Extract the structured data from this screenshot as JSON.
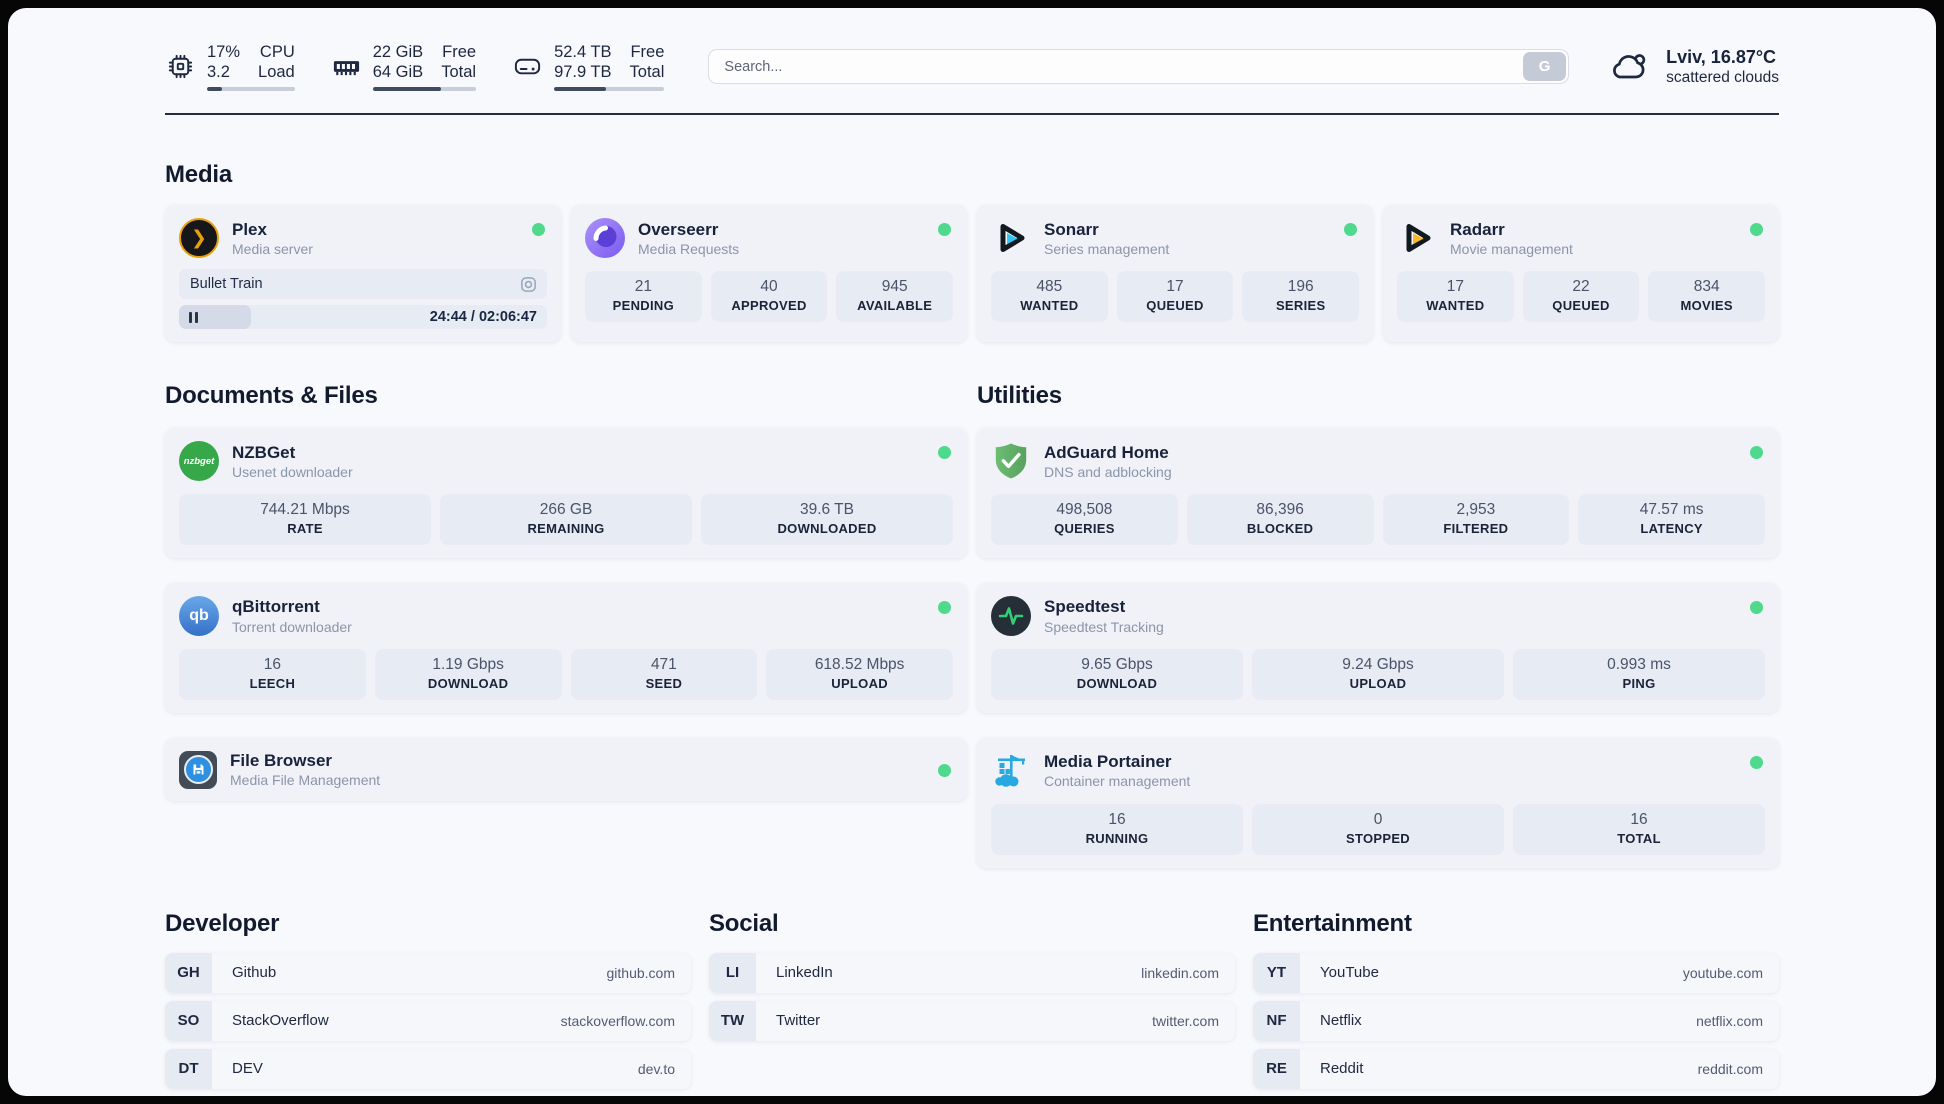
{
  "topbar": {
    "cpu": {
      "value_1": "17%",
      "value_2": "3.2",
      "label_1": "CPU",
      "label_2": "Load",
      "progress_pct": 17
    },
    "ram": {
      "value_1": "22 GiB",
      "value_2": "64 GiB",
      "label_1": "Free",
      "label_2": "Total",
      "progress_pct": 66
    },
    "disk": {
      "value_1": "52.4 TB",
      "value_2": "97.9 TB",
      "label_1": "Free",
      "label_2": "Total",
      "progress_pct": 47
    },
    "search": {
      "placeholder": "Search...",
      "button_label": "G"
    },
    "weather": {
      "location": "Lviv, 16.87°C",
      "condition": "scattered clouds"
    }
  },
  "media": {
    "heading": "Media",
    "plex": {
      "name": "Plex",
      "subtitle": "Media server",
      "now_playing": "Bullet Train",
      "time_text": "24:44 / 02:06:47",
      "progress_pct": 19.5
    },
    "overseerr": {
      "name": "Overseerr",
      "subtitle": "Media Requests",
      "stats": [
        {
          "value": "21",
          "label": "PENDING"
        },
        {
          "value": "40",
          "label": "APPROVED"
        },
        {
          "value": "945",
          "label": "AVAILABLE"
        }
      ]
    },
    "sonarr": {
      "name": "Sonarr",
      "subtitle": "Series management",
      "stats": [
        {
          "value": "485",
          "label": "WANTED"
        },
        {
          "value": "17",
          "label": "QUEUED"
        },
        {
          "value": "196",
          "label": "SERIES"
        }
      ]
    },
    "radarr": {
      "name": "Radarr",
      "subtitle": "Movie management",
      "stats": [
        {
          "value": "17",
          "label": "WANTED"
        },
        {
          "value": "22",
          "label": "QUEUED"
        },
        {
          "value": "834",
          "label": "MOVIES"
        }
      ]
    }
  },
  "documents": {
    "heading": "Documents & Files",
    "nzbget": {
      "name": "NZBGet",
      "subtitle": "Usenet downloader",
      "logo_text": "nzbget",
      "stats": [
        {
          "value": "744.21 Mbps",
          "label": "RATE"
        },
        {
          "value": "266 GB",
          "label": "REMAINING"
        },
        {
          "value": "39.6 TB",
          "label": "DOWNLOADED"
        }
      ]
    },
    "qbittorrent": {
      "name": "qBittorrent",
      "subtitle": "Torrent downloader",
      "logo_text": "qb",
      "stats": [
        {
          "value": "16",
          "label": "LEECH"
        },
        {
          "value": "1.19 Gbps",
          "label": "DOWNLOAD"
        },
        {
          "value": "471",
          "label": "SEED"
        },
        {
          "value": "618.52 Mbps",
          "label": "UPLOAD"
        }
      ]
    },
    "filebrowser": {
      "name": "File Browser",
      "subtitle": "Media File Management"
    }
  },
  "utilities": {
    "heading": "Utilities",
    "adguard": {
      "name": "AdGuard Home",
      "subtitle": "DNS and adblocking",
      "stats": [
        {
          "value": "498,508",
          "label": "QUERIES"
        },
        {
          "value": "86,396",
          "label": "BLOCKED"
        },
        {
          "value": "2,953",
          "label": "FILTERED"
        },
        {
          "value": "47.57 ms",
          "label": "LATENCY"
        }
      ]
    },
    "speedtest": {
      "name": "Speedtest",
      "subtitle": "Speedtest Tracking",
      "stats": [
        {
          "value": "9.65 Gbps",
          "label": "DOWNLOAD"
        },
        {
          "value": "9.24 Gbps",
          "label": "UPLOAD"
        },
        {
          "value": "0.993 ms",
          "label": "PING"
        }
      ]
    },
    "portainer": {
      "name": "Media Portainer",
      "subtitle": "Container management",
      "stats": [
        {
          "value": "16",
          "label": "RUNNING"
        },
        {
          "value": "0",
          "label": "STOPPED"
        },
        {
          "value": "16",
          "label": "TOTAL"
        }
      ]
    }
  },
  "bookmarks": {
    "developer": {
      "heading": "Developer",
      "items": [
        {
          "badge": "GH",
          "name": "Github",
          "url": "github.com"
        },
        {
          "badge": "SO",
          "name": "StackOverflow",
          "url": "stackoverflow.com"
        },
        {
          "badge": "DT",
          "name": "DEV",
          "url": "dev.to"
        }
      ]
    },
    "social": {
      "heading": "Social",
      "items": [
        {
          "badge": "LI",
          "name": "LinkedIn",
          "url": "linkedin.com"
        },
        {
          "badge": "TW",
          "name": "Twitter",
          "url": "twitter.com"
        }
      ]
    },
    "entertainment": {
      "heading": "Entertainment",
      "items": [
        {
          "badge": "YT",
          "name": "YouTube",
          "url": "youtube.com"
        },
        {
          "badge": "NF",
          "name": "Netflix",
          "url": "netflix.com"
        },
        {
          "badge": "RE",
          "name": "Reddit",
          "url": "reddit.com"
        }
      ]
    }
  },
  "colors": {
    "status_online": "#4ed98c",
    "plex_amber": "#e5a00d",
    "sonarr_cyan": "#35c5f4",
    "radarr_yellow": "#f7b92c",
    "nzbget_green": "#36a849",
    "qbittorrent_blue": "#3470c8",
    "adguard_green": "#67b279",
    "speedtest_green": "#2fd076",
    "portainer_blue": "#29a9e0"
  }
}
